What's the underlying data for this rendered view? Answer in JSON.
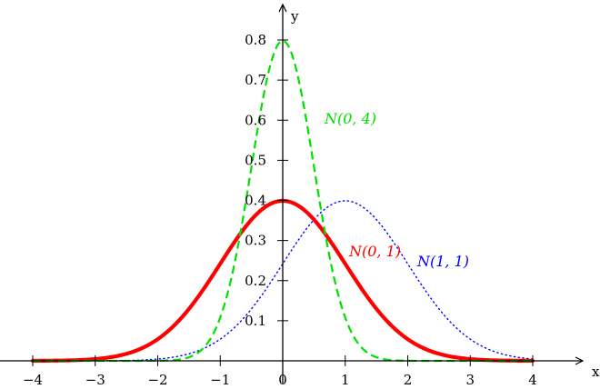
{
  "chart_data": {
    "type": "line",
    "title": "",
    "xlabel": "x",
    "ylabel": "y",
    "xlim": [
      -4,
      4
    ],
    "ylim": [
      0,
      0.8
    ],
    "grid": false,
    "x_ticks": [
      -4,
      -3,
      -2,
      -1,
      0,
      1,
      2,
      3,
      4
    ],
    "x_tick_labels": [
      "−4",
      "−3",
      "−2",
      "−1",
      "0",
      "1",
      "2",
      "3",
      "4"
    ],
    "y_ticks": [
      0.1,
      0.2,
      0.3,
      0.4,
      0.5,
      0.6,
      0.7,
      0.8
    ],
    "y_tick_labels": [
      "0.1",
      "0.2",
      "0.3",
      "0.4",
      "0.5",
      "0.6",
      "0.7",
      "0.8"
    ],
    "series": [
      {
        "name": "N(0,1)",
        "label_text": "N(0, 1)",
        "color": "#ff0000",
        "style": "solid",
        "mu": 0,
        "sigma": 1,
        "x": [
          -4,
          -3,
          -2,
          -1,
          0,
          1,
          2,
          3,
          4
        ],
        "values": [
          0.0001,
          0.0044,
          0.054,
          0.242,
          0.399,
          0.242,
          0.054,
          0.0044,
          0.0001
        ]
      },
      {
        "name": "N(0,4)",
        "label_text": "N(0, 4)",
        "color": "#00e000",
        "style": "dashed",
        "mu": 0,
        "sigma": 0.5,
        "x": [
          -4,
          -3,
          -2,
          -1,
          0,
          1,
          2,
          3,
          4
        ],
        "values": [
          0,
          0,
          0,
          0.108,
          0.798,
          0.108,
          0,
          0,
          0
        ]
      },
      {
        "name": "N(1,1)",
        "label_text": "N(1, 1)",
        "color": "#0000ff",
        "style": "dotted",
        "mu": 1,
        "sigma": 1,
        "x": [
          -4,
          -3,
          -2,
          -1,
          0,
          1,
          2,
          3,
          4
        ],
        "values": [
          0,
          0.0001,
          0.0044,
          0.054,
          0.242,
          0.399,
          0.242,
          0.054,
          0.0044
        ]
      }
    ]
  }
}
